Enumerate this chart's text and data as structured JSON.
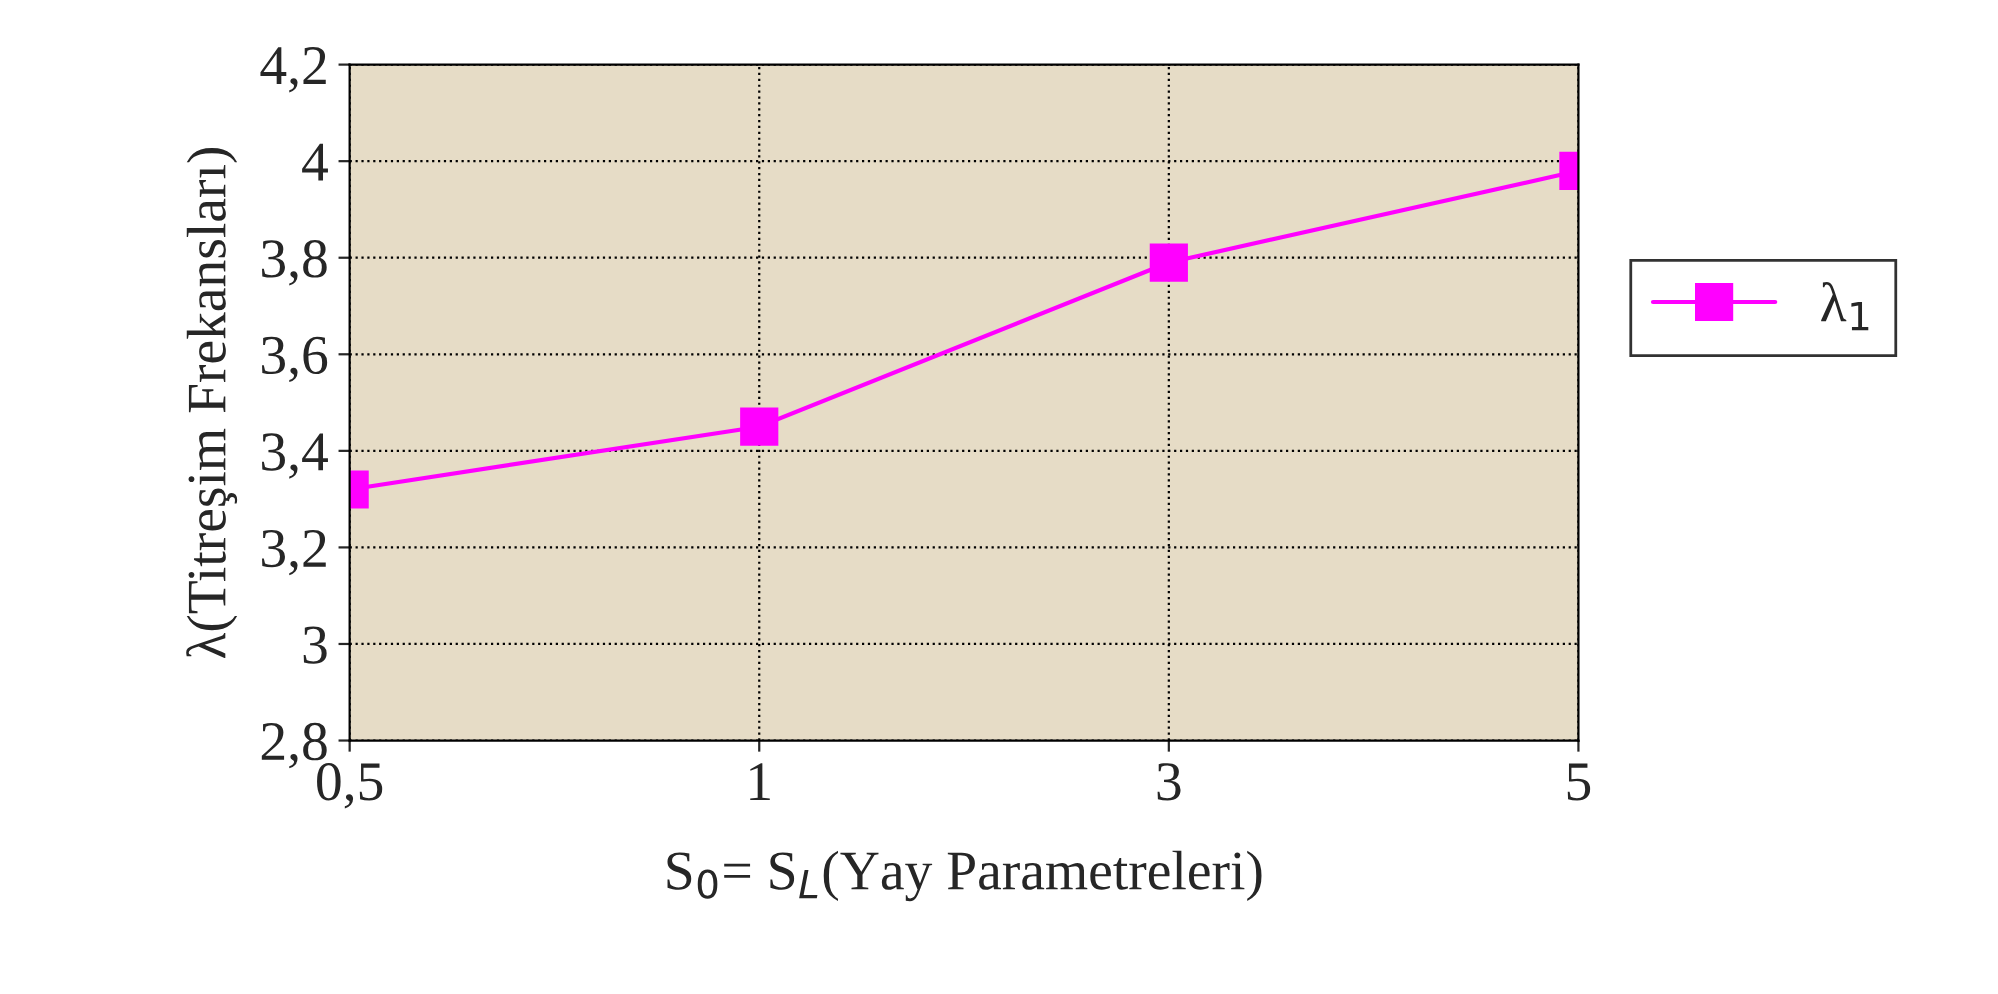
{
  "chart_data": {
    "type": "line",
    "xlabel": "S$_{0}$= S$_{L}$(Yay Parametreleri)",
    "ylabel": "λ(Titreşim Frekansları)",
    "categories": [
      "0,5",
      "1",
      "3",
      "5"
    ],
    "series": [
      {
        "name": "λ$_{1}$",
        "color": "#ff00ff",
        "values": [
          3.32,
          3.45,
          3.79,
          3.98
        ]
      }
    ],
    "ylim": [
      2.8,
      4.2
    ],
    "yticks": [
      {
        "value": 2.8,
        "label": "2,8"
      },
      3,
      {
        "value": 3.2,
        "label": "3,2"
      },
      {
        "value": 3.4,
        "label": "3,4"
      },
      {
        "value": 3.6,
        "label": "3,6"
      },
      {
        "value": 3.8,
        "label": "3,8"
      },
      4,
      {
        "value": 4.2,
        "label": "4,2"
      }
    ],
    "grid": true,
    "legend": "right",
    "marker": "square",
    "line_style": "solid"
  }
}
